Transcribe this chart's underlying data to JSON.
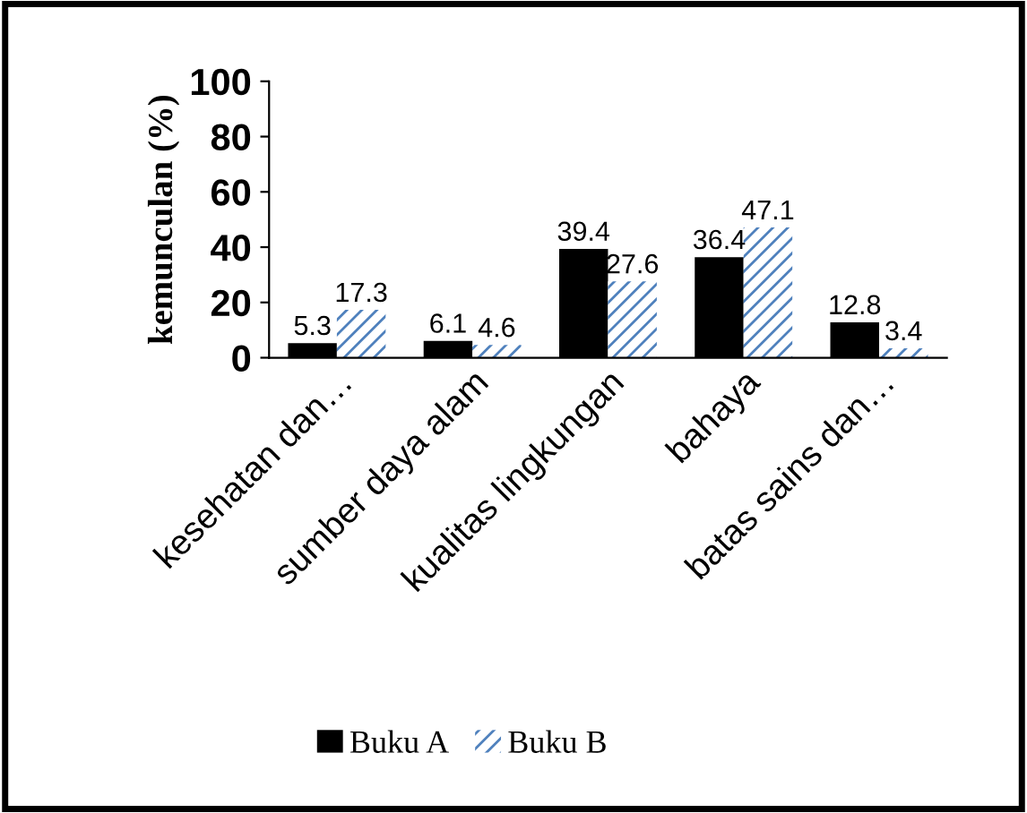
{
  "chart_data": {
    "type": "bar",
    "ylabel": "kemunculan (%)",
    "categories": [
      "kesehatan dan…",
      "sumber daya alam",
      "kualitas lingkungan",
      "bahaya",
      "batas sains dan…"
    ],
    "series": [
      {
        "name": "Buku A",
        "color": "#000000",
        "values": [
          5.3,
          6.1,
          39.4,
          36.4,
          12.8
        ]
      },
      {
        "name": "Buku B",
        "color": "#4f81bd",
        "values": [
          17.3,
          4.6,
          27.6,
          47.1,
          3.4
        ]
      }
    ],
    "ylim": [
      0,
      100
    ],
    "yticks": [
      0,
      20,
      40,
      60,
      80,
      100
    ],
    "grid": false,
    "legend": "bottom",
    "data_labels": true
  }
}
